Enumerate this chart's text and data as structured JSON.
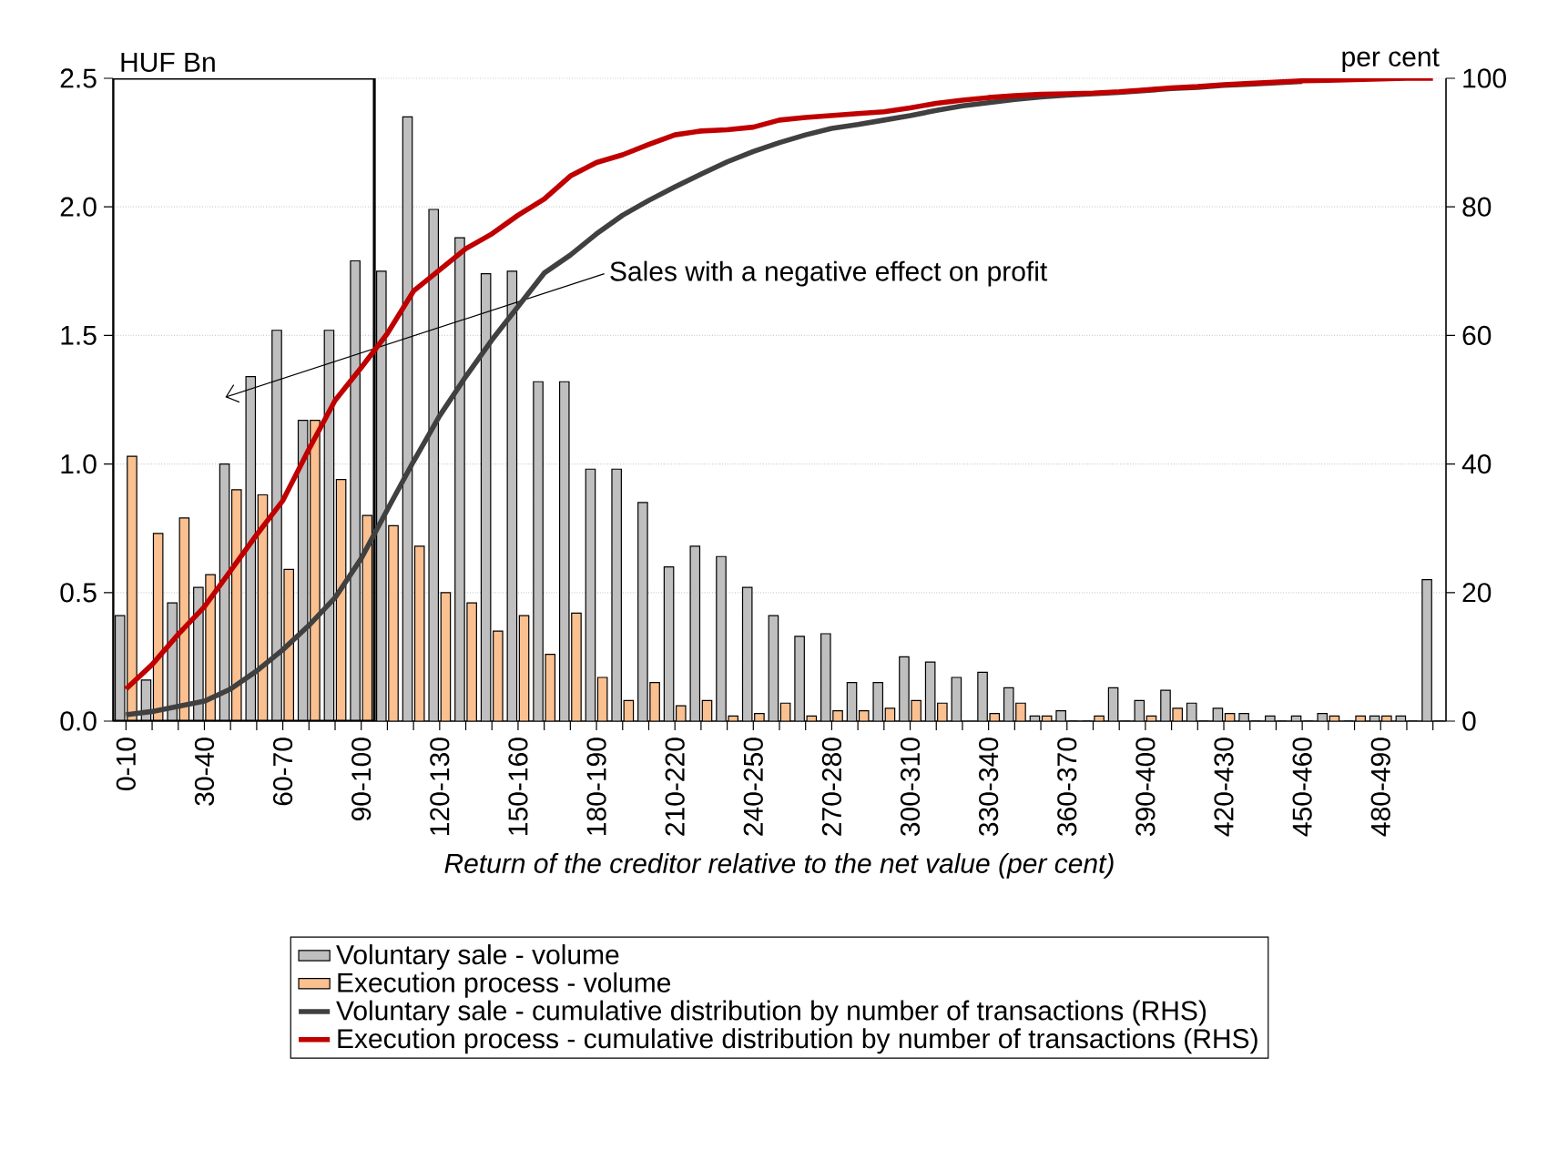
{
  "chart_data": {
    "type": "bar",
    "ylabel": "HUF Bn",
    "y2label": "per cent",
    "xlabel": "Return of the creditor relative to the net value (per cent)",
    "annotations": [
      "Sales with a negative effect on profit"
    ],
    "categories": [
      "0-10",
      null,
      null,
      "30-40",
      null,
      null,
      "60-70",
      null,
      null,
      "90-100",
      null,
      null,
      "120-130",
      null,
      null,
      "150-160",
      null,
      null,
      "180-190",
      null,
      null,
      "210-220",
      null,
      null,
      "240-250",
      null,
      null,
      "270-280",
      null,
      null,
      "300-310",
      null,
      null,
      "330-340",
      null,
      null,
      "360-370",
      null,
      null,
      "390-400",
      null,
      null,
      "420-430",
      null,
      null,
      "450-460",
      null,
      null,
      "480-490",
      null,
      null
    ],
    "series": [
      {
        "name": "Voluntary sale - volume",
        "color": "#bfbfbf",
        "values": [
          0.41,
          0.16,
          0.46,
          0.52,
          1.0,
          1.34,
          1.52,
          1.17,
          1.52,
          1.79,
          1.75,
          2.35,
          1.99,
          1.88,
          1.74,
          1.75,
          1.32,
          1.32,
          0.98,
          0.98,
          0.85,
          0.6,
          0.68,
          0.64,
          0.52,
          0.41,
          0.33,
          0.34,
          0.15,
          0.15,
          0.25,
          0.23,
          0.17,
          0.19,
          0.13,
          0.02,
          0.04,
          0,
          0.13,
          0.08,
          0.12,
          0.07,
          0.05,
          0.03,
          0.02,
          0.02,
          0.03,
          0,
          0.02,
          0.02,
          0.55
        ]
      },
      {
        "name": "Execution process - volume",
        "color": "#fac090",
        "values": [
          1.03,
          0.73,
          0.79,
          0.57,
          0.9,
          0.88,
          0.59,
          1.17,
          0.94,
          0.8,
          0.76,
          0.68,
          0.5,
          0.46,
          0.35,
          0.41,
          0.26,
          0.42,
          0.17,
          0.08,
          0.15,
          0.06,
          0.08,
          0.02,
          0.03,
          0.07,
          0.02,
          0.04,
          0.04,
          0.05,
          0.08,
          0.07,
          null,
          0.03,
          0.07,
          0.02,
          0,
          0.02,
          0,
          0.02,
          0.05,
          0,
          0.03,
          0,
          0,
          0,
          0.02,
          0.02,
          0.02,
          0,
          0
        ]
      },
      {
        "name": "Voluntary sale - cumulative distribution by number of transactions (RHS)",
        "type": "line",
        "axis": "y2",
        "color": "#404040",
        "values": [
          1.0,
          1.5,
          2.3,
          3.1,
          5.0,
          7.8,
          11.1,
          14.9,
          19.2,
          25.3,
          32.9,
          40.4,
          47.5,
          53.6,
          59.3,
          64.5,
          69.7,
          72.5,
          75.8,
          78.7,
          81.0,
          83.1,
          85.1,
          87.0,
          88.6,
          90.0,
          91.2,
          92.2,
          92.8,
          93.5,
          94.2,
          95.0,
          95.7,
          96.2,
          96.7,
          97.1,
          97.4,
          97.6,
          97.8,
          98.1,
          98.4,
          98.6,
          98.9,
          99.1,
          99.3,
          99.5,
          null,
          null,
          null,
          null,
          null
        ]
      },
      {
        "name": "Execution process - cumulative distribution by number of transactions (RHS)",
        "type": "line",
        "axis": "y2",
        "color": "#c00000",
        "values": [
          5.0,
          8.8,
          13.5,
          17.8,
          23.4,
          29.0,
          34.3,
          42.3,
          49.9,
          55.0,
          60.3,
          66.9,
          70.2,
          73.5,
          75.8,
          78.7,
          81.2,
          84.8,
          86.9,
          88.1,
          89.7,
          91.2,
          91.8,
          92.0,
          92.4,
          93.5,
          93.9,
          94.2,
          94.5,
          94.8,
          95.4,
          96.1,
          96.6,
          97.0,
          97.3,
          97.5,
          97.6,
          97.7,
          97.9,
          98.2,
          98.5,
          98.7,
          99.0,
          99.2,
          99.4,
          99.6,
          99.7,
          99.8,
          99.9,
          100,
          100
        ]
      }
    ],
    "ylim": [
      0,
      2.5
    ],
    "yticks": [
      {
        "value": 0,
        "label": "0.0"
      },
      0.5,
      {
        "value": 1,
        "label": "1.0"
      },
      1.5,
      {
        "value": 2,
        "label": "2.0"
      },
      2.5
    ],
    "y2lim": [
      0,
      100
    ],
    "y2ticks": [
      0,
      20,
      40,
      60,
      80,
      100
    ],
    "grid": "y",
    "legend": "bottom"
  }
}
